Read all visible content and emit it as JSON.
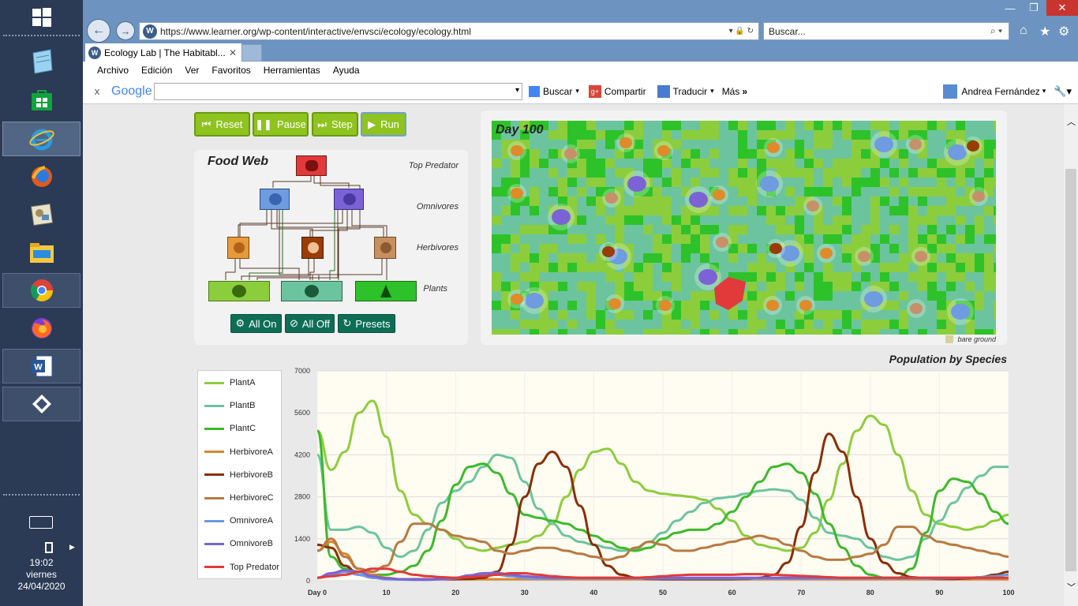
{
  "taskbar": {
    "icons": [
      {
        "name": "windows-start-icon"
      },
      {
        "name": "notepad-icon"
      },
      {
        "name": "store-icon"
      },
      {
        "name": "internet-explorer-icon"
      },
      {
        "name": "firefox-old-icon"
      },
      {
        "name": "control-panel-icon"
      },
      {
        "name": "file-explorer-icon"
      },
      {
        "name": "chrome-icon"
      },
      {
        "name": "firefox-icon"
      },
      {
        "name": "word-icon"
      },
      {
        "name": "teamviewer-icon"
      }
    ],
    "clock": {
      "time": "19:02",
      "day": "viernes",
      "date": "24/04/2020"
    }
  },
  "browser": {
    "url": "https://www.learner.org/wp-content/interactive/envsci/ecology/ecology.html",
    "search_placeholder": "Buscar...",
    "tab_title": "Ecology Lab | The Habitabl...",
    "menu": [
      "Archivo",
      "Edición",
      "Ver",
      "Favoritos",
      "Herramientas",
      "Ayuda"
    ],
    "googlebar": {
      "close": "x",
      "logo": "Google",
      "buscar": "Buscar",
      "compartir": "Compartir",
      "traducir": "Traducir",
      "mas": "Más",
      "user": "Andrea Fernández"
    }
  },
  "controls": {
    "reset": "Reset",
    "pause": "Pause",
    "step": "Step",
    "run": "Run"
  },
  "food_web": {
    "title": "Food Web",
    "levels": [
      "Top Predator",
      "Omnivores",
      "Herbivores",
      "Plants"
    ],
    "buttons": {
      "all_on": "All On",
      "all_off": "All Off",
      "presets": "Presets"
    }
  },
  "simulation": {
    "day_label": "Day 100",
    "legend_label": "bare ground"
  },
  "chart_data": {
    "type": "line",
    "title": "Population by Species",
    "x_tick_labels": [
      "Day 0",
      "10",
      "20",
      "30",
      "40",
      "50",
      "60",
      "70",
      "80",
      "90",
      "100"
    ],
    "y_tick_labels": [
      "0",
      "1400",
      "2800",
      "4200",
      "5600",
      "7000"
    ],
    "xlim": [
      0,
      100
    ],
    "ylim": [
      0,
      7000
    ],
    "x": [
      0,
      2,
      4,
      6,
      8,
      10,
      12,
      14,
      16,
      18,
      20,
      22,
      24,
      26,
      28,
      30,
      32,
      34,
      36,
      38,
      40,
      42,
      44,
      46,
      48,
      50,
      52,
      54,
      56,
      58,
      60,
      62,
      64,
      66,
      68,
      70,
      72,
      74,
      76,
      78,
      80,
      82,
      84,
      86,
      88,
      90,
      92,
      94,
      96,
      98,
      100
    ],
    "series": [
      {
        "name": "PlantA",
        "color": "#8ccd3c",
        "values": [
          5000,
          3700,
          4300,
          5600,
          6000,
          4800,
          3000,
          2200,
          1900,
          1700,
          1400,
          1100,
          1000,
          1100,
          1200,
          1300,
          1500,
          1900,
          2800,
          3700,
          4300,
          4400,
          3900,
          3300,
          3000,
          2900,
          2850,
          2800,
          2700,
          2400,
          2000,
          1500,
          1200,
          1100,
          1000,
          1100,
          1600,
          2700,
          3900,
          5000,
          5500,
          5200,
          4200,
          3000,
          2200,
          1900,
          1800,
          1700,
          1800,
          2000,
          2200
        ]
      },
      {
        "name": "PlantB",
        "color": "#6cc49e",
        "values": [
          4200,
          1700,
          1700,
          1800,
          1600,
          1100,
          800,
          1000,
          1700,
          2600,
          3000,
          3300,
          3800,
          4200,
          4100,
          3300,
          2400,
          1900,
          1500,
          1300,
          1200,
          1100,
          1000,
          1050,
          1300,
          1600,
          2000,
          2300,
          2600,
          2750,
          2800,
          2900,
          3000,
          3050,
          3000,
          2700,
          2100,
          1600,
          1500,
          1400,
          1100,
          800,
          700,
          800,
          1400,
          2000,
          2600,
          3100,
          3500,
          3800,
          3800
        ]
      },
      {
        "name": "PlantC",
        "color": "#3cba2a",
        "values": [
          5000,
          800,
          400,
          300,
          200,
          200,
          300,
          500,
          1000,
          2000,
          3200,
          3800,
          3900,
          3600,
          2900,
          2200,
          2100,
          2000,
          1900,
          1700,
          1500,
          1300,
          1100,
          1000,
          1100,
          1400,
          1600,
          1700,
          1700,
          1900,
          2300,
          2800,
          3300,
          3800,
          3900,
          3600,
          2900,
          1900,
          1100,
          500,
          200,
          100,
          100,
          400,
          1600,
          3000,
          3400,
          3300,
          2900,
          2300,
          1900
        ]
      },
      {
        "name": "HerbivoreA",
        "color": "#d8862a",
        "values": [
          1000,
          1300,
          900,
          400,
          200,
          100,
          50,
          50,
          50,
          50,
          50,
          50,
          50,
          50,
          50,
          50,
          50,
          50,
          50,
          50,
          50,
          50,
          50,
          50,
          50,
          50,
          50,
          50,
          50,
          50,
          50,
          50,
          50,
          50,
          50,
          50,
          50,
          50,
          50,
          50,
          50,
          50,
          50,
          50,
          50,
          50,
          50,
          50,
          50,
          50,
          50
        ]
      },
      {
        "name": "HerbivoreB",
        "color": "#8a2e05",
        "values": [
          1200,
          1100,
          500,
          200,
          100,
          60,
          50,
          50,
          50,
          50,
          50,
          60,
          100,
          300,
          1200,
          2800,
          3900,
          4300,
          3800,
          2500,
          1200,
          500,
          200,
          100,
          60,
          50,
          50,
          50,
          50,
          50,
          50,
          60,
          100,
          200,
          600,
          1800,
          3600,
          4900,
          4300,
          2800,
          1400,
          600,
          250,
          120,
          80,
          60,
          60,
          80,
          120,
          200,
          300
        ]
      },
      {
        "name": "HerbivoreC",
        "color": "#b87a42",
        "values": [
          1000,
          1400,
          800,
          400,
          300,
          500,
          1300,
          1900,
          1900,
          1700,
          1500,
          1400,
          1300,
          1000,
          900,
          1000,
          1100,
          1100,
          1000,
          900,
          800,
          700,
          800,
          1100,
          1300,
          1200,
          1000,
          1000,
          1100,
          1200,
          1300,
          1400,
          1500,
          1400,
          1200,
          1000,
          800,
          700,
          700,
          800,
          900,
          1200,
          1800,
          1800,
          1500,
          1300,
          1200,
          1100,
          1000,
          900,
          800
        ]
      },
      {
        "name": "OmnivoreA",
        "color": "#6a9ae0",
        "values": [
          100,
          200,
          300,
          200,
          100,
          50,
          40,
          30,
          30,
          50,
          80,
          150,
          200,
          200,
          150,
          100,
          80,
          80,
          80,
          80,
          80,
          80,
          80,
          80,
          80,
          80,
          80,
          80,
          80,
          80,
          80,
          80,
          80,
          80,
          80,
          80,
          80,
          80,
          80,
          80,
          80,
          80,
          80,
          80,
          80,
          80,
          90,
          100,
          120,
          150,
          200
        ]
      },
      {
        "name": "OmnivoreB",
        "color": "#7b63d6",
        "values": [
          100,
          250,
          350,
          300,
          150,
          80,
          50,
          40,
          40,
          60,
          100,
          180,
          250,
          260,
          200,
          150,
          120,
          100,
          100,
          100,
          100,
          100,
          100,
          100,
          100,
          100,
          100,
          100,
          100,
          100,
          100,
          100,
          100,
          100,
          100,
          100,
          100,
          100,
          100,
          100,
          100,
          100,
          100,
          100,
          100,
          100,
          100,
          100,
          100,
          100,
          100
        ]
      },
      {
        "name": "Top Predator",
        "color": "#e03a3a",
        "values": [
          100,
          150,
          200,
          300,
          400,
          400,
          300,
          200,
          150,
          120,
          100,
          120,
          150,
          200,
          250,
          250,
          200,
          150,
          120,
          100,
          100,
          100,
          100,
          100,
          120,
          150,
          180,
          200,
          200,
          200,
          200,
          220,
          220,
          200,
          180,
          160,
          140,
          120,
          100,
          100,
          100,
          100,
          100,
          100,
          100,
          100,
          100,
          100,
          100,
          100,
          100
        ]
      }
    ]
  }
}
